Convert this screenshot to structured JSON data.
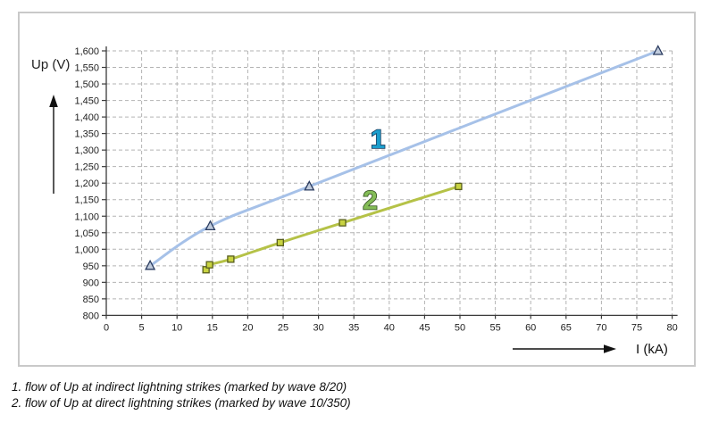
{
  "chart_data": {
    "type": "line",
    "title": "",
    "xlabel": "I (kA)",
    "ylabel": "Up (V)",
    "xlim": [
      0,
      80
    ],
    "xtick_step": 5,
    "ylim": [
      800,
      1600
    ],
    "ytick_step": 50,
    "grid": "dashed both axes",
    "grid_color": "#b3b3b3",
    "axis_color": "#3a3a3a",
    "tick_label_color": "#222222",
    "series": [
      {
        "name": "1",
        "description": "flow of Up at indirect lightning strikes (marked by wave 8/20)",
        "wave": "8/20",
        "marker": "triangle",
        "line_color": "#a6c1e8",
        "marker_fill": "#c0cbdc",
        "marker_stroke": "#2b3c60",
        "number_fill": "#1b9ecd",
        "number_stroke": "#173a5c",
        "number_at": [
          38.4,
          1335
        ],
        "points": [
          [
            6.2,
            950
          ],
          [
            14.7,
            1070
          ],
          [
            28.7,
            1190
          ],
          [
            78,
            1600
          ]
        ]
      },
      {
        "name": "2",
        "description": "flow of Up at direct lightning strikes (marked by wave 10/350)",
        "wave": "10/350",
        "marker": "square",
        "line_color": "#b5c247",
        "marker_fill": "#c8d341",
        "marker_stroke": "#585e1e",
        "number_fill": "#84bc57",
        "number_stroke": "#2e4a1c",
        "number_at": [
          37.3,
          1150
        ],
        "points": [
          [
            14.1,
            938
          ],
          [
            14.6,
            953
          ],
          [
            17.6,
            970
          ],
          [
            24.6,
            1020
          ],
          [
            33.4,
            1080
          ],
          [
            49.8,
            1190
          ]
        ]
      }
    ]
  },
  "caption": {
    "line1": "1. flow of Up at indirect lightning strikes (marked by wave 8/20)",
    "line2": "2. flow of Up at direct lightning strikes (marked by wave 10/350)"
  }
}
